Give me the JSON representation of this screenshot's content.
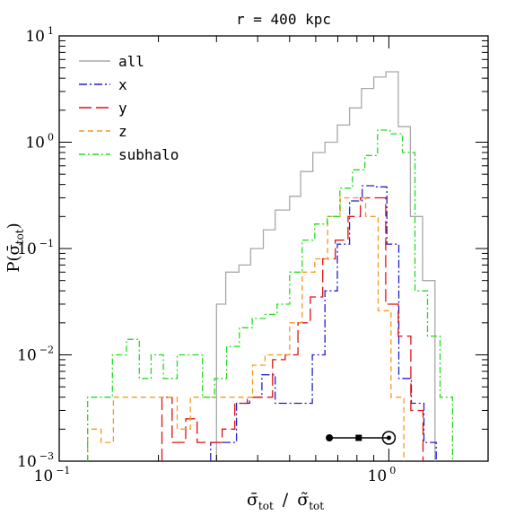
{
  "chart_data": {
    "type": "line",
    "title": "r = 400 kpc",
    "xlabel": {
      "main": "σ̄",
      "sub": "tot",
      "sep": "/",
      "main2": "σ̃",
      "sub2": "tot"
    },
    "ylabel": {
      "main": "P(σ̄",
      "sub": "tot",
      "close": ")"
    },
    "x_scale": "log",
    "y_scale": "log",
    "xlim": [
      0.1,
      2.0
    ],
    "ylim": [
      0.001,
      10
    ],
    "x_ticklabels": [
      {
        "value": 0.1,
        "base": "10",
        "exp": "−1"
      },
      {
        "value": 1.0,
        "base": "10",
        "exp": "0"
      }
    ],
    "y_ticklabels": [
      {
        "value": 0.001,
        "base": "10",
        "exp": "−3"
      },
      {
        "value": 0.01,
        "base": "10",
        "exp": "−2"
      },
      {
        "value": 0.1,
        "base": "10",
        "exp": "−1"
      },
      {
        "value": 1.0,
        "base": "10",
        "exp": "0"
      },
      {
        "value": 10.0,
        "base": "10",
        "exp": "1"
      }
    ],
    "legend_position": "top-left",
    "series": [
      {
        "name": "all",
        "color": "#a8a8a8",
        "dash": "",
        "edges": [
          0.3,
          0.32,
          0.351,
          0.381,
          0.416,
          0.452,
          0.5,
          0.54,
          0.588,
          0.64,
          0.698,
          0.76,
          0.826,
          0.9,
          0.98,
          1.068,
          1.162,
          1.266,
          1.38
        ],
        "values": [
          0.03,
          0.06,
          0.07,
          0.1,
          0.15,
          0.23,
          0.31,
          0.53,
          0.8,
          1.0,
          1.45,
          2.1,
          3.2,
          4.1,
          4.6,
          1.4,
          0.2,
          0.05
        ]
      },
      {
        "name": "x",
        "color": "#2020cc",
        "dash": "9 3 2 3",
        "edges": [
          0.288,
          0.315,
          0.345,
          0.378,
          0.412,
          0.452,
          0.49,
          0.538,
          0.586,
          0.64,
          0.698,
          0.76,
          0.83,
          0.906,
          0.986,
          1.072,
          1.17,
          1.278,
          1.392
        ],
        "values": [
          0.0015,
          0.0015,
          0.0035,
          0.004,
          0.0065,
          0.0035,
          0.0035,
          0.0035,
          0.01,
          0.04,
          0.11,
          0.28,
          0.39,
          0.38,
          0.11,
          0.006,
          0.0035,
          0.0015
        ]
      },
      {
        "name": "y",
        "color": "#e01010",
        "dash": "14 5",
        "edges": [
          0.205,
          0.22,
          0.242,
          0.262,
          0.285,
          0.312,
          0.341,
          0.372,
          0.407,
          0.444,
          0.485,
          0.53,
          0.578,
          0.63,
          0.688,
          0.752,
          0.82,
          0.896,
          0.978,
          1.068,
          1.166,
          1.27
        ],
        "values": [
          0.004,
          0.0015,
          0.0025,
          0.0015,
          0.0015,
          0.002,
          0.0035,
          0.004,
          0.004,
          0.009,
          0.01,
          0.02,
          0.035,
          0.08,
          0.12,
          0.2,
          0.3,
          0.3,
          0.03,
          0.015,
          0.003
        ]
      },
      {
        "name": "z",
        "color": "#f29a1e",
        "dash": "6 4",
        "edges": [
          0.122,
          0.134,
          0.146,
          0.16,
          0.175,
          0.19,
          0.208,
          0.228,
          0.25,
          0.272,
          0.296,
          0.324,
          0.354,
          0.386,
          0.421,
          0.46,
          0.5,
          0.546,
          0.596,
          0.652,
          0.712,
          0.778,
          0.85,
          0.928,
          1.015,
          1.11
        ],
        "values": [
          0.002,
          0.0015,
          0.004,
          0.004,
          0.004,
          0.004,
          0.004,
          0.002,
          0.004,
          0.004,
          0.004,
          0.004,
          0.004,
          0.008,
          0.01,
          0.01,
          0.02,
          0.06,
          0.08,
          0.2,
          0.3,
          0.3,
          0.2,
          0.026,
          0.004
        ]
      },
      {
        "name": "subhalo",
        "color": "#20dd20",
        "dash": "7 3 2 3",
        "edges": [
          0.122,
          0.132,
          0.145,
          0.16,
          0.175,
          0.19,
          0.207,
          0.228,
          0.25,
          0.272,
          0.296,
          0.322,
          0.352,
          0.385,
          0.421,
          0.458,
          0.5,
          0.546,
          0.596,
          0.65,
          0.71,
          0.776,
          0.846,
          0.924,
          1.008,
          1.1,
          1.2,
          1.31,
          1.43,
          1.56
        ],
        "values": [
          0.004,
          0.004,
          0.01,
          0.014,
          0.006,
          0.01,
          0.006,
          0.01,
          0.01,
          0.004,
          0.006,
          0.012,
          0.018,
          0.022,
          0.024,
          0.03,
          0.06,
          0.12,
          0.17,
          0.2,
          0.37,
          0.55,
          0.75,
          1.3,
          1.2,
          0.8,
          0.04,
          0.015,
          0.004
        ]
      }
    ],
    "annotation_points": [
      0.66,
      0.81,
      1.0
    ]
  }
}
